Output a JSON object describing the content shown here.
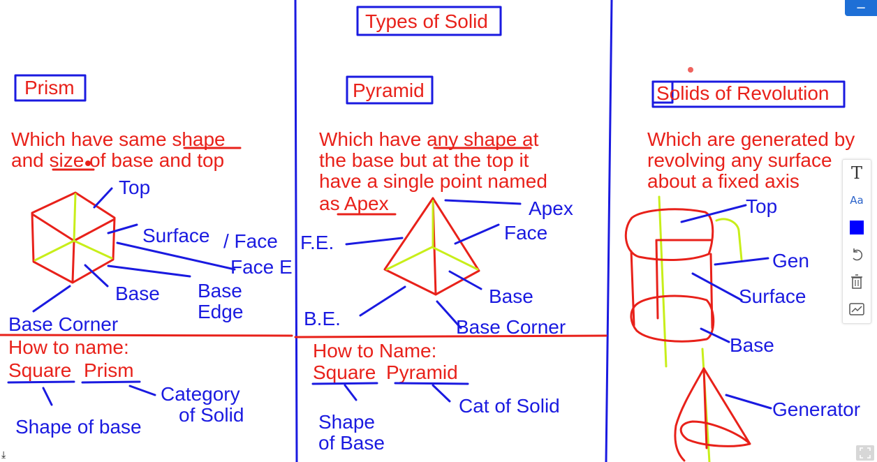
{
  "title": "Types of Solid",
  "prism": {
    "heading": "Prism",
    "definition": [
      "Which have same shape",
      "and size of base and top"
    ],
    "labels": {
      "top": "Top",
      "surface": "Surface",
      "face": "/ Face",
      "face_e": "Face E",
      "base": "Base",
      "base_edge_1": "Base",
      "base_edge_2": "Edge",
      "base_corner": "Base Corner"
    },
    "how_to_name": "How to name:",
    "name_word1": "Square",
    "name_word2": "Prism",
    "category": [
      "Category",
      "of Solid"
    ],
    "shape_of_base": "Shape of base"
  },
  "pyramid": {
    "heading": "Pyramid",
    "definition": [
      "Which have any shape at",
      "the base but at the top it",
      "have a single point named",
      "as Apex"
    ],
    "labels": {
      "apex": "Apex",
      "fe": "F.E.",
      "face": "Face",
      "be": "B.E.",
      "base": "Base",
      "base_corner": "Base  Corner"
    },
    "how_to_name": "How to Name:",
    "name_word1": "Square",
    "name_word2": "Pyramid",
    "category": "Cat of Solid",
    "shape_of_base": [
      "Shape",
      "of Base"
    ]
  },
  "revolution": {
    "heading": "Solids of Revolution",
    "definition": [
      "Which are generated by",
      "revolving any surface",
      "about a fixed axis"
    ],
    "labels": {
      "top": "Top",
      "gen": "Gen",
      "surface": "Surface",
      "base": "Base",
      "generator": "Generator"
    }
  },
  "toolbar": {
    "tools": [
      "text-tool",
      "font-size-tool",
      "color-tool",
      "undo",
      "delete",
      "graph-tool"
    ],
    "text_glyph": "T",
    "font_glyph": "Aa",
    "current_color": "#0000ff"
  },
  "colors": {
    "red_ink": "#e8211a",
    "blue_ink": "#1a1ae0",
    "yellow_ink": "#c8ee1a",
    "accent": "#1e6fd6"
  }
}
